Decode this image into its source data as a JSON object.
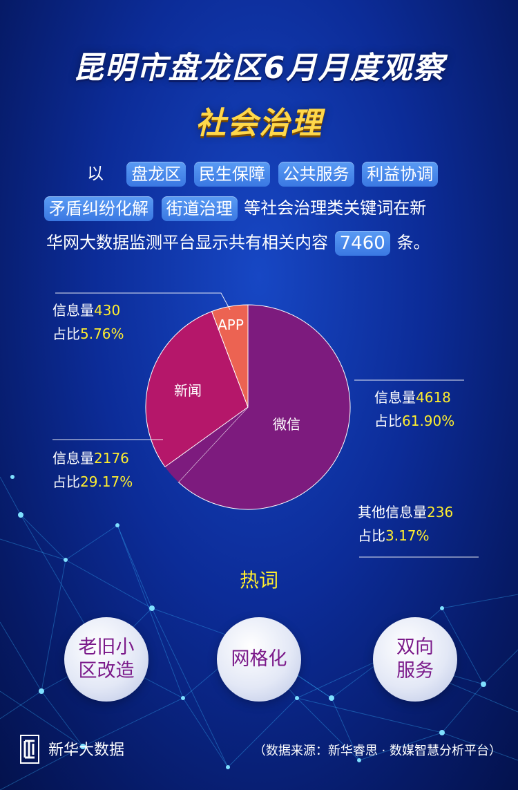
{
  "title": {
    "line1": "昆明市盘龙区6月月度观察",
    "line2": "社会治理"
  },
  "intro": {
    "prefix": "以",
    "tags_line1": [
      "盘龙区",
      "民生保障",
      "公共服务",
      "利益协调"
    ],
    "tags_line2": [
      "矛盾纠纷化解",
      "街道治理"
    ],
    "line2_suffix": "等社会治理类关键词在新",
    "line3_prefix": "华网大数据监测平台显示共有相关内容",
    "total": "7460",
    "line3_suffix": "条。"
  },
  "chart_data": {
    "type": "pie",
    "slices": [
      {
        "name": "微信",
        "value": 4618,
        "percent": 61.9,
        "color": "#7d1b7e"
      },
      {
        "name": "新闻",
        "value": 2176,
        "percent": 29.17,
        "color": "#b5176a"
      },
      {
        "name": "APP",
        "value": 430,
        "percent": 5.76,
        "color": "#ec6352"
      },
      {
        "name": "其他",
        "value": 236,
        "percent": 3.17,
        "color": "#7d1b7e"
      }
    ],
    "labels": {
      "wechat": {
        "count_prefix": "信息量",
        "count": "4618",
        "pct_prefix": "占比",
        "pct": "61.90%"
      },
      "news": {
        "count_prefix": "信息量",
        "count": "2176",
        "pct_prefix": "占比",
        "pct": "29.17%"
      },
      "app": {
        "count_prefix": "信息量",
        "count": "430",
        "pct_prefix": "占比",
        "pct": "5.76%"
      },
      "other": {
        "count_prefix": "其他信息量",
        "count": "236",
        "pct_prefix": "占比",
        "pct": "3.17%"
      }
    }
  },
  "hotwords": {
    "title": "热词",
    "items": [
      {
        "line1": "老旧小",
        "line2": "区改造"
      },
      {
        "line1": "网格化",
        "line2": ""
      },
      {
        "line1": "双向",
        "line2": "服务"
      }
    ]
  },
  "footer": {
    "brand": "新华大数据",
    "source": "（数据来源：新华睿思 · 数媒智慧分析平台）"
  }
}
